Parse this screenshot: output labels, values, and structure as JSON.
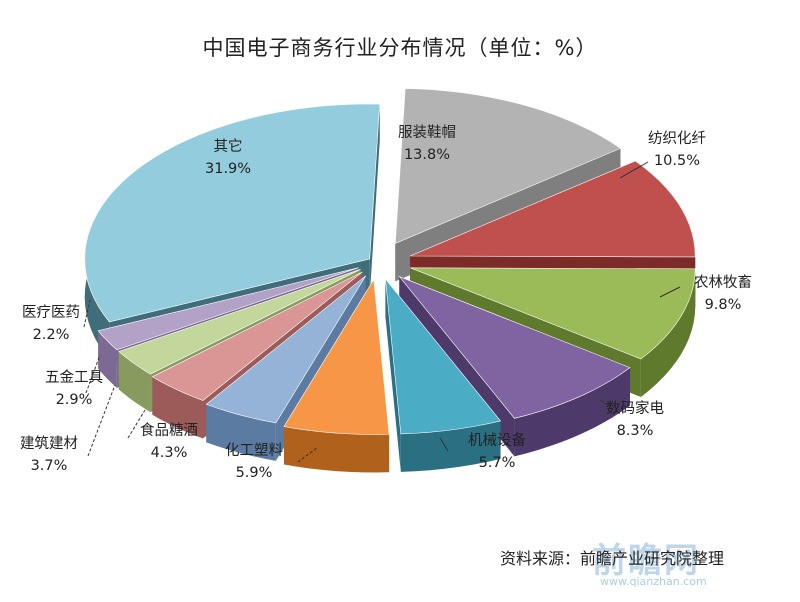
{
  "chart_data": {
    "type": "pie",
    "title": "中国电子商务行业分布情况（单位：%）",
    "categories": [
      "服装鞋帽",
      "纺织化纤",
      "农林牧畜",
      "数码家电",
      "机械设备",
      "化工塑料",
      "食品糖酒",
      "建筑建材",
      "五金工具",
      "医疗医药",
      "其它"
    ],
    "values": [
      13.8,
      10.5,
      9.8,
      8.3,
      5.7,
      5.9,
      4.3,
      3.7,
      2.9,
      2.2,
      31.9
    ],
    "value_labels": [
      "13.8%",
      "10.5%",
      "9.8%",
      "8.3%",
      "5.7%",
      "5.9%",
      "4.3%",
      "3.7%",
      "2.9%",
      "2.2%",
      "31.9%"
    ],
    "colors": [
      "#b3b3b3",
      "#c0504d",
      "#9bbb59",
      "#8064a2",
      "#4bacc6",
      "#f79646",
      "#95b3d7",
      "#d99694",
      "#c3d69b",
      "#b3a2c7",
      "#93cddd"
    ],
    "side_colors": [
      "#7f7f7f",
      "#7d2b28",
      "#5f7a2d",
      "#4e3a6a",
      "#2a6f82",
      "#b0621d",
      "#5b7ba3",
      "#9c5a58",
      "#879b5e",
      "#7c6a93",
      "#3f6e7a"
    ],
    "exploded": true,
    "three_d": true,
    "legend": "none"
  },
  "source_text": "资料来源：前瞻产业研究院整理",
  "watermark_text": "前瞻网",
  "watermark_url": "www.qianzhan.com"
}
